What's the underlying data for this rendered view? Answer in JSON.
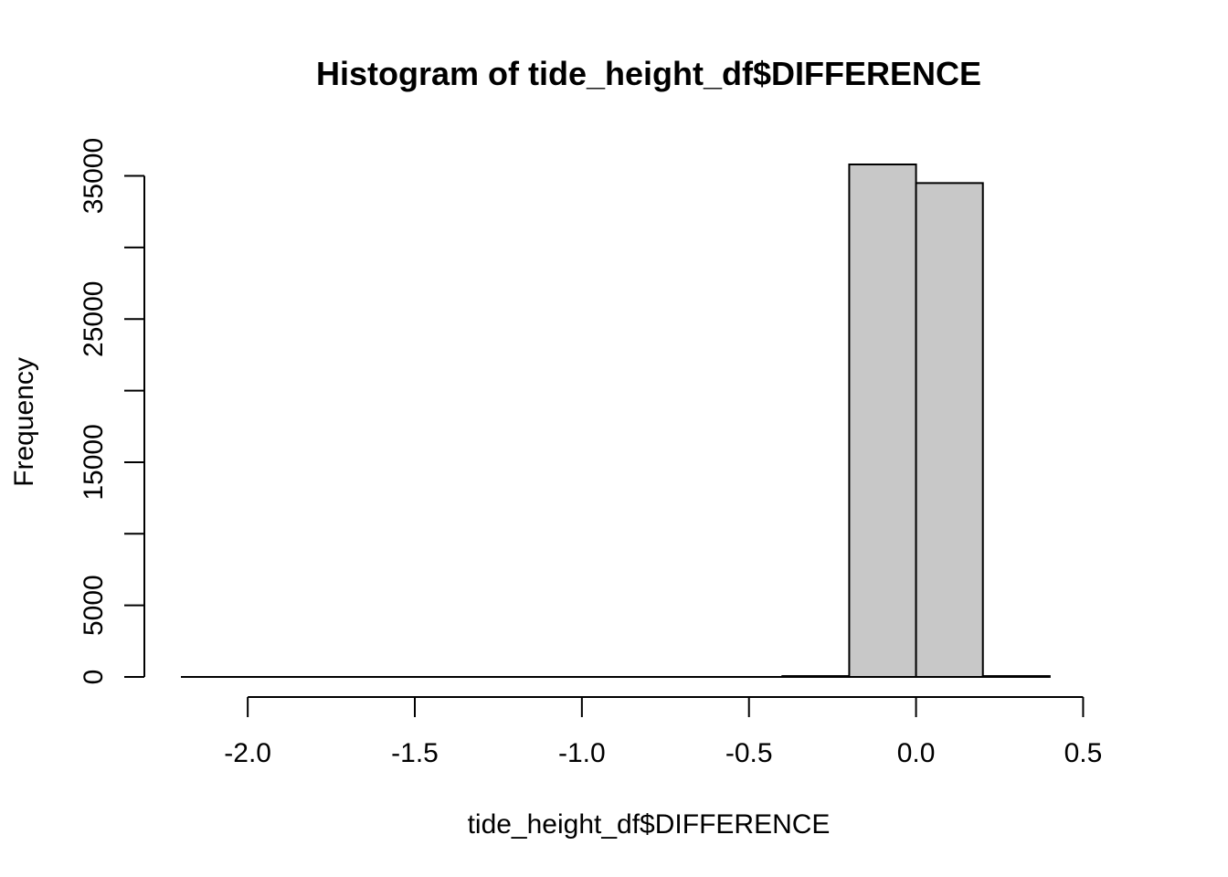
{
  "chart_data": {
    "type": "bar",
    "title": "Histogram of tide_height_df$DIFFERENCE",
    "xlabel": "tide_height_df$DIFFERENCE",
    "ylabel": "Frequency",
    "bar_color": "#c8c8c8",
    "bin_edges": [
      -2.2,
      -2.0,
      -1.8,
      -1.6,
      -1.4,
      -1.2,
      -1.0,
      -0.8,
      -0.6,
      -0.4,
      -0.2,
      0.0,
      0.2,
      0.4
    ],
    "values": [
      0,
      0,
      0,
      0,
      0,
      0,
      0,
      0,
      0,
      60,
      35800,
      34500,
      60
    ],
    "xlim": [
      -2.2,
      0.6
    ],
    "ylim": [
      0,
      35800
    ],
    "x_ticks": [
      -2.0,
      -1.5,
      -1.0,
      -0.5,
      0.0,
      0.5
    ],
    "x_tick_labels": [
      "-2.0",
      "-1.5",
      "-1.0",
      "-0.5",
      "0.0",
      "0.5"
    ],
    "y_ticks": [
      0,
      5000,
      10000,
      15000,
      20000,
      25000,
      30000,
      35000
    ],
    "y_tick_labels": [
      "0",
      "5000",
      "",
      "15000",
      "",
      "25000",
      "",
      "35000"
    ],
    "grid": false,
    "legend": "none"
  }
}
